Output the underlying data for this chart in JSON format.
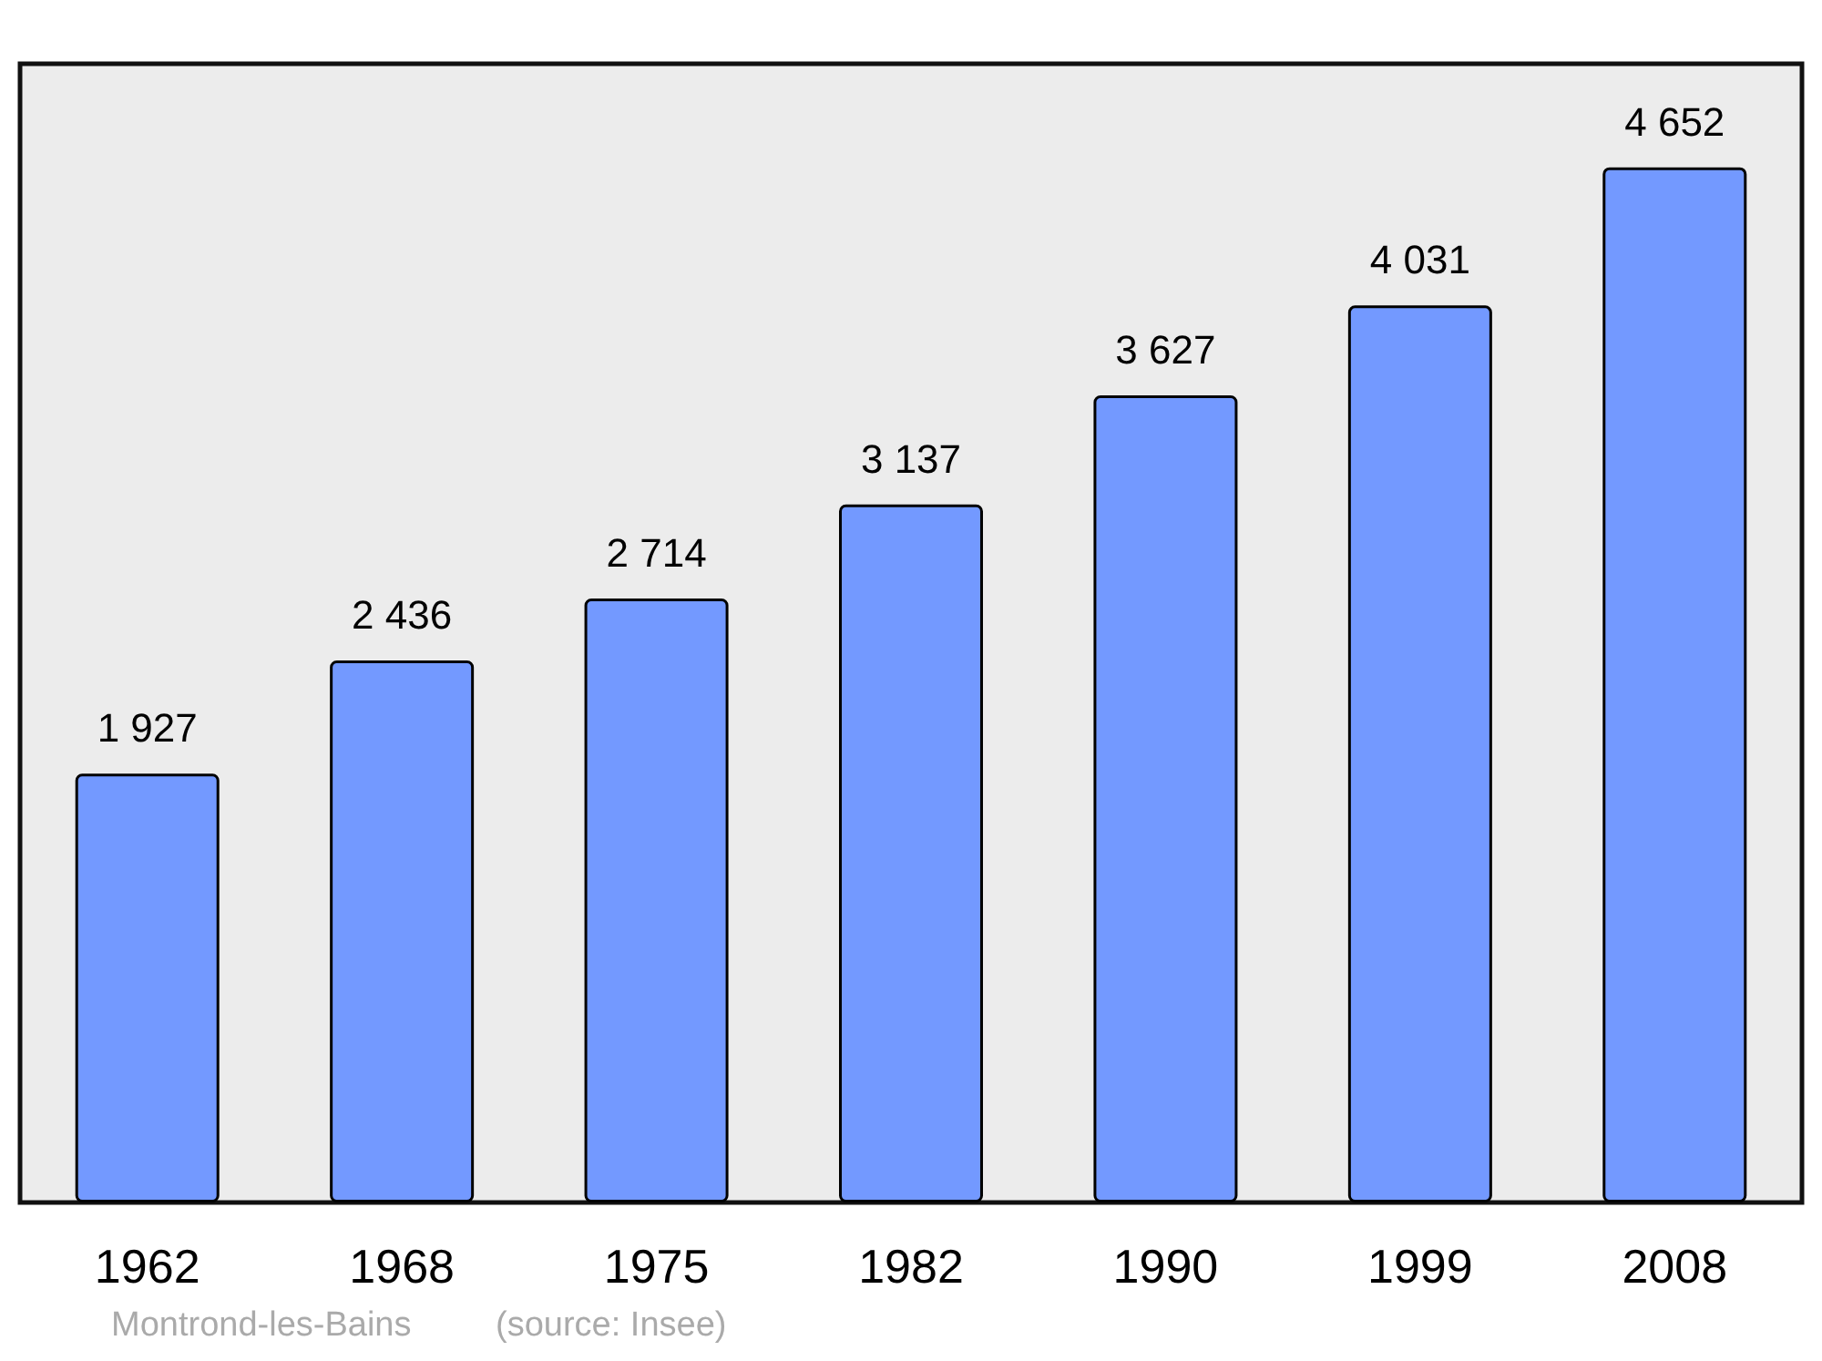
{
  "chart_data": {
    "type": "bar",
    "categories": [
      "1962",
      "1968",
      "1975",
      "1982",
      "1990",
      "1999",
      "2008"
    ],
    "values": [
      1927,
      2436,
      2714,
      3137,
      3627,
      4031,
      4652
    ],
    "color": "#7399ff",
    "value_labels": [
      "1 927",
      "2 436",
      "2 714",
      "3 137",
      "3 627",
      "4 031",
      "4 652"
    ],
    "annotations": [
      "Montrond-les-Bains",
      "(source: Insee)"
    ]
  }
}
